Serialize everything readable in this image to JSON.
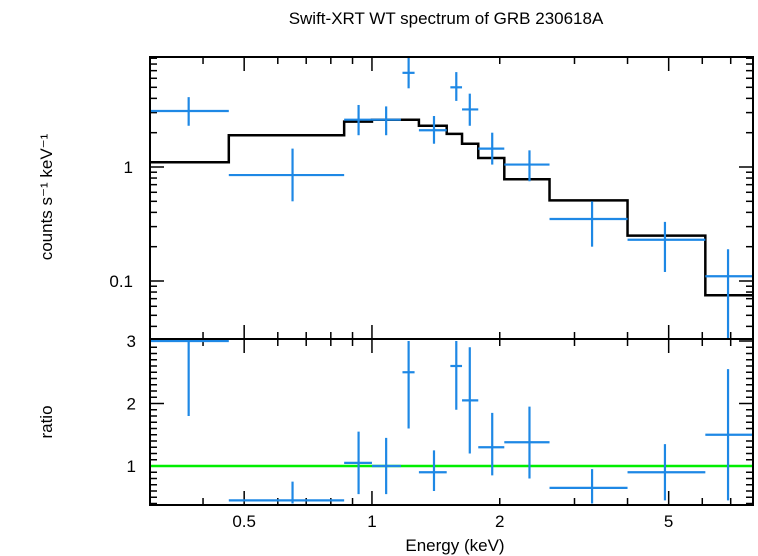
{
  "chart_data": [
    {
      "type": "scatter",
      "panel": "spectrum",
      "title": "Swift-XRT WT spectrum of GRB 230618A",
      "ylabel": "counts s⁻¹ keV⁻¹",
      "x_scale": "log",
      "y_scale": "log",
      "xlim": [
        0.3,
        7.9
      ],
      "ylim": [
        0.03,
        9.5
      ],
      "y_tick_labels": [
        {
          "value": 1,
          "label": "1"
        },
        {
          "value": 0.1,
          "label": "0.1"
        }
      ],
      "data_color": "#1e88e5",
      "model_color": "#000000",
      "series": [
        {
          "kind": "data",
          "points": [
            {
              "x": 0.37,
              "xlo": 0.3,
              "xhi": 0.46,
              "y": 3.1,
              "ylo": 2.3,
              "yhi": 4.1
            },
            {
              "x": 0.65,
              "xlo": 0.46,
              "xhi": 0.86,
              "y": 0.85,
              "ylo": 0.5,
              "yhi": 1.45
            },
            {
              "x": 0.93,
              "xlo": 0.86,
              "xhi": 1.0,
              "y": 2.6,
              "ylo": 1.9,
              "yhi": 3.5
            },
            {
              "x": 1.08,
              "xlo": 1.0,
              "xhi": 1.17,
              "y": 2.6,
              "ylo": 1.9,
              "yhi": 3.4
            },
            {
              "x": 1.22,
              "xlo": 1.18,
              "xhi": 1.26,
              "y": 6.7,
              "ylo": 4.9,
              "yhi": 9.3
            },
            {
              "x": 1.4,
              "xlo": 1.29,
              "xhi": 1.5,
              "y": 2.1,
              "ylo": 1.6,
              "yhi": 2.8
            },
            {
              "x": 1.58,
              "xlo": 1.53,
              "xhi": 1.63,
              "y": 5.0,
              "ylo": 3.8,
              "yhi": 6.8
            },
            {
              "x": 1.7,
              "xlo": 1.63,
              "xhi": 1.78,
              "y": 3.2,
              "ylo": 2.3,
              "yhi": 4.4
            },
            {
              "x": 1.92,
              "xlo": 1.78,
              "xhi": 2.05,
              "y": 1.45,
              "ylo": 1.05,
              "yhi": 2.0
            },
            {
              "x": 2.35,
              "xlo": 2.05,
              "xhi": 2.62,
              "y": 1.05,
              "ylo": 0.75,
              "yhi": 1.4
            },
            {
              "x": 3.3,
              "xlo": 2.62,
              "xhi": 4.0,
              "y": 0.35,
              "ylo": 0.2,
              "yhi": 0.5
            },
            {
              "x": 4.9,
              "xlo": 4.0,
              "xhi": 6.1,
              "y": 0.23,
              "ylo": 0.12,
              "yhi": 0.33
            },
            {
              "x": 6.9,
              "xlo": 6.1,
              "xhi": 7.9,
              "y": 0.11,
              "ylo": 0.03,
              "yhi": 0.19
            }
          ]
        },
        {
          "kind": "model",
          "steps": [
            {
              "xlo": 0.3,
              "xhi": 0.46,
              "y": 1.1
            },
            {
              "xlo": 0.46,
              "xhi": 0.86,
              "y": 1.9
            },
            {
              "xlo": 0.86,
              "xhi": 1.0,
              "y": 2.5
            },
            {
              "xlo": 1.0,
              "xhi": 1.17,
              "y": 2.6
            },
            {
              "xlo": 1.17,
              "xhi": 1.29,
              "y": 2.6
            },
            {
              "xlo": 1.29,
              "xhi": 1.5,
              "y": 2.3
            },
            {
              "xlo": 1.5,
              "xhi": 1.63,
              "y": 1.95
            },
            {
              "xlo": 1.63,
              "xhi": 1.78,
              "y": 1.6
            },
            {
              "xlo": 1.78,
              "xhi": 2.05,
              "y": 1.2
            },
            {
              "xlo": 2.05,
              "xhi": 2.62,
              "y": 0.78
            },
            {
              "xlo": 2.62,
              "xhi": 4.0,
              "y": 0.51
            },
            {
              "xlo": 4.0,
              "xhi": 6.1,
              "y": 0.25
            },
            {
              "xlo": 6.1,
              "xhi": 7.9,
              "y": 0.075
            }
          ]
        }
      ]
    },
    {
      "type": "scatter",
      "panel": "ratio",
      "xlabel": "Energy (keV)",
      "ylabel": "ratio",
      "x_scale": "log",
      "y_scale": "linear",
      "xlim": [
        0.3,
        7.9
      ],
      "ylim": [
        0.4,
        3.0
      ],
      "x_tick_labels": [
        {
          "value": 0.5,
          "label": "0.5"
        },
        {
          "value": 1,
          "label": "1"
        },
        {
          "value": 2,
          "label": "2"
        },
        {
          "value": 5,
          "label": "5"
        }
      ],
      "y_tick_labels": [
        {
          "value": 3,
          "label": "3"
        },
        {
          "value": 2,
          "label": "2"
        },
        {
          "value": 1,
          "label": "1"
        }
      ],
      "reference_line": {
        "y": 1,
        "color": "#00ee00"
      },
      "data_color": "#1e88e5",
      "points": [
        {
          "x": 0.37,
          "xlo": 0.3,
          "xhi": 0.46,
          "y": 3.0,
          "ylo": 1.8,
          "yhi": 3.0
        },
        {
          "x": 0.65,
          "xlo": 0.46,
          "xhi": 0.86,
          "y": 0.45,
          "ylo": 0.4,
          "yhi": 0.75
        },
        {
          "x": 0.93,
          "xlo": 0.86,
          "xhi": 1.0,
          "y": 1.05,
          "ylo": 0.55,
          "yhi": 1.55
        },
        {
          "x": 1.08,
          "xlo": 1.0,
          "xhi": 1.17,
          "y": 1.0,
          "ylo": 0.55,
          "yhi": 1.45
        },
        {
          "x": 1.22,
          "xlo": 1.18,
          "xhi": 1.26,
          "y": 2.5,
          "ylo": 1.6,
          "yhi": 3.0
        },
        {
          "x": 1.4,
          "xlo": 1.29,
          "xhi": 1.5,
          "y": 0.9,
          "ylo": 0.6,
          "yhi": 1.25
        },
        {
          "x": 1.58,
          "xlo": 1.53,
          "xhi": 1.63,
          "y": 2.6,
          "ylo": 1.9,
          "yhi": 3.0
        },
        {
          "x": 1.7,
          "xlo": 1.63,
          "xhi": 1.78,
          "y": 2.05,
          "ylo": 1.2,
          "yhi": 2.9
        },
        {
          "x": 1.92,
          "xlo": 1.78,
          "xhi": 2.05,
          "y": 1.3,
          "ylo": 0.85,
          "yhi": 1.85
        },
        {
          "x": 2.35,
          "xlo": 2.05,
          "xhi": 2.62,
          "y": 1.38,
          "ylo": 0.8,
          "yhi": 1.95
        },
        {
          "x": 3.3,
          "xlo": 2.62,
          "xhi": 4.0,
          "y": 0.65,
          "ylo": 0.4,
          "yhi": 0.95
        },
        {
          "x": 4.9,
          "xlo": 4.0,
          "xhi": 6.1,
          "y": 0.9,
          "ylo": 0.45,
          "yhi": 1.35
        },
        {
          "x": 6.9,
          "xlo": 6.1,
          "xhi": 7.9,
          "y": 1.5,
          "ylo": 0.45,
          "yhi": 2.55
        }
      ]
    }
  ]
}
